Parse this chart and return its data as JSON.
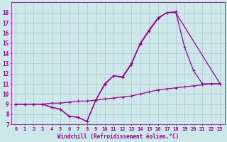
{
  "bg_color": "#cce8e8",
  "line_color": "#990099",
  "grid_color": "#aabbcc",
  "xlabel": "Windchill (Refroidissement éolien,°C)",
  "xlim": [
    -0.5,
    23.5
  ],
  "ylim": [
    7,
    19
  ],
  "xticks": [
    0,
    1,
    2,
    3,
    4,
    5,
    6,
    7,
    8,
    9,
    10,
    11,
    12,
    13,
    14,
    15,
    16,
    17,
    18,
    19,
    20,
    21,
    22,
    23
  ],
  "yticks": [
    7,
    8,
    9,
    10,
    11,
    12,
    13,
    14,
    15,
    16,
    17,
    18
  ],
  "series": [
    {
      "x": [
        0,
        1,
        2,
        3,
        4,
        5,
        6,
        7,
        8,
        9,
        10,
        11,
        12,
        13,
        14,
        15,
        16,
        17,
        18,
        23
      ],
      "y": [
        9,
        9,
        9,
        9,
        8.7,
        8.5,
        7.8,
        7.7,
        7.3,
        9.4,
        11,
        11.8,
        11.7,
        13,
        15,
        16.3,
        17.5,
        18,
        18,
        11
      ]
    },
    {
      "x": [
        0,
        1,
        2,
        3,
        4,
        5,
        6,
        7,
        8,
        9,
        10,
        11,
        12,
        13,
        14,
        15,
        16,
        17,
        18,
        19,
        20,
        21,
        22,
        23
      ],
      "y": [
        9,
        9,
        9,
        9,
        8.7,
        8.5,
        7.8,
        7.7,
        7.3,
        9.4,
        10.9,
        11.8,
        11.6,
        12.9,
        14.9,
        16.2,
        17.4,
        18,
        18.1,
        14.6,
        12.3,
        11,
        11,
        11
      ]
    },
    {
      "x": [
        0,
        1,
        2,
        3,
        4,
        5,
        6,
        7,
        8,
        9,
        10,
        11,
        12,
        13,
        14,
        15,
        16,
        17,
        18,
        19,
        20,
        21,
        22,
        23
      ],
      "y": [
        9,
        9,
        9,
        9,
        9.1,
        9.1,
        9.2,
        9.3,
        9.3,
        9.4,
        9.5,
        9.6,
        9.7,
        9.8,
        10.0,
        10.2,
        10.4,
        10.5,
        10.6,
        10.7,
        10.8,
        10.9,
        11,
        11
      ]
    }
  ],
  "xlabel_fontsize": 5.5,
  "tick_fontsize": 5.0,
  "marker_size": 2.5,
  "line_width": 0.9
}
